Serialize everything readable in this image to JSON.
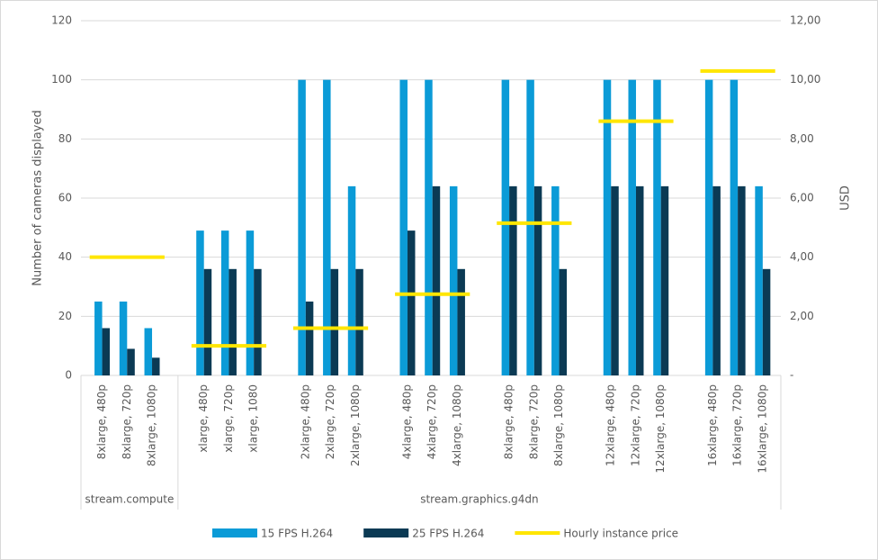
{
  "chart_data": {
    "type": "bar",
    "categories": [
      "8xlarge, 480p",
      "8xlarge, 720p",
      "8xlarge, 1080p",
      "xlarge, 480p",
      "xlarge, 720p",
      "xlarge, 1080",
      "2xlarge, 480p",
      "2xlarge, 720p",
      "2xlarge, 1080p",
      "4xlarge, 480p",
      "4xlarge, 720p",
      "4xlarge, 1080p",
      "8xlarge, 480p",
      "8xlarge, 720p",
      "8xlarge, 1080p",
      "12xlarge, 480p",
      "12xlarge, 720p",
      "12xlarge, 1080p",
      "16xlarge, 480p",
      "16xlarge, 720p",
      "16xlarge, 1080p"
    ],
    "groups": [
      "stream.compute",
      null,
      null,
      "stream.graphics.g4dn",
      null,
      null,
      null,
      null,
      null,
      null,
      null,
      null,
      null,
      null,
      null,
      null,
      null,
      null,
      null,
      null,
      null
    ],
    "series": [
      {
        "name": "15 FPS H.264",
        "color": "#0b9bd7",
        "type": "bar",
        "values": [
          25,
          25,
          16,
          49,
          49,
          49,
          100,
          100,
          64,
          100,
          100,
          64,
          100,
          100,
          64,
          100,
          100,
          100,
          100,
          100,
          64
        ]
      },
      {
        "name": "25 FPS H.264",
        "color": "#0b3a54",
        "type": "bar",
        "values": [
          16,
          9,
          6,
          36,
          36,
          36,
          25,
          36,
          36,
          49,
          64,
          36,
          64,
          64,
          36,
          64,
          64,
          64,
          64,
          64,
          36
        ]
      },
      {
        "name": "Hourly instance price",
        "color": "#ffe600",
        "type": "line",
        "axis": "y2",
        "values": [
          4.0,
          4.0,
          4.0,
          1.0,
          1.0,
          1.0,
          1.6,
          1.6,
          1.6,
          2.75,
          2.75,
          2.75,
          5.15,
          5.15,
          5.15,
          8.6,
          8.6,
          8.6,
          10.3,
          10.3,
          10.3
        ]
      }
    ],
    "y_label": "Number of cameras displayed",
    "y2_label": "USD",
    "ylim": [
      0,
      120
    ],
    "yticks": [
      0,
      20,
      40,
      60,
      80,
      100,
      120
    ],
    "y2lim": [
      0,
      12
    ],
    "y2ticks": [
      {
        "value": 0,
        "label": "-"
      },
      {
        "value": 2,
        "label": "2,00"
      },
      {
        "value": 4,
        "label": "4,00"
      },
      {
        "value": 6,
        "label": "6,00"
      },
      {
        "value": 8,
        "label": "8,00"
      },
      {
        "value": 10,
        "label": "10,00"
      },
      {
        "value": 12,
        "label": "12,00"
      }
    ],
    "grid": true,
    "legend": "bottom"
  }
}
